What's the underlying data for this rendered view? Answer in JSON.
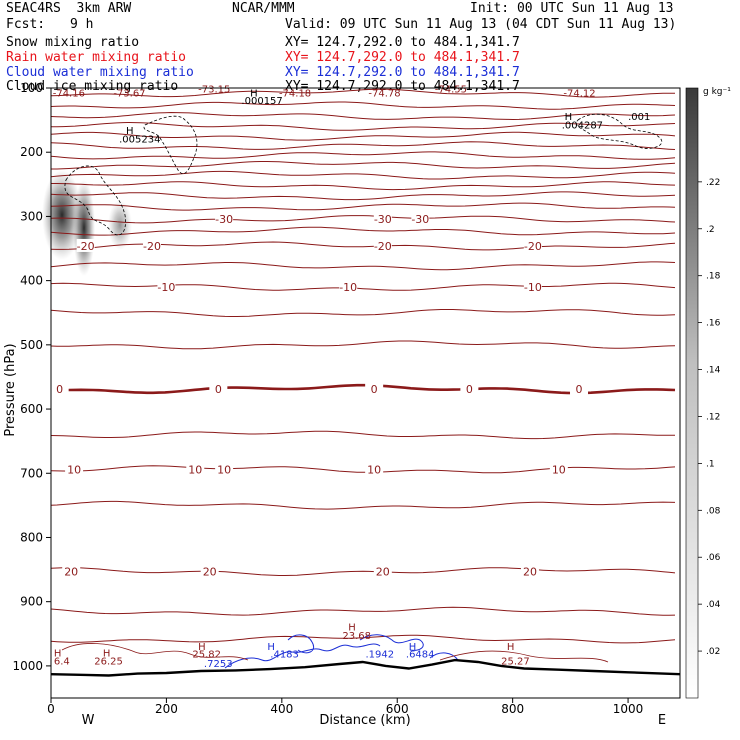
{
  "header": {
    "model": "SEAC4RS  3km ARW",
    "fcst_label": "Fcst:",
    "fcst_value": "9 h",
    "center": "NCAR/MMM",
    "init": "Init: 00 UTC Sun 11 Aug 13",
    "valid": "Valid: 09 UTC Sun 11 Aug 13 (04 CDT Sun 11 Aug 13)",
    "fields": [
      {
        "name": "Snow mixing ratio",
        "xy": "XY= 124.7,292.0 to 484.1,341.7",
        "color": "#000000"
      },
      {
        "name": "Rain water mixing ratio",
        "xy": "XY= 124.7,292.0 to 484.1,341.7",
        "color": "#e8141b"
      },
      {
        "name": "Cloud water mixing ratio",
        "xy": "XY= 124.7,292.0 to 484.1,341.7",
        "color": "#1c2fd6"
      },
      {
        "name": "Cloud ice mixing ratio",
        "xy": "XY= 124.7,292.0 to 484.1,341.7",
        "color": "#000000"
      }
    ]
  },
  "chart_data": {
    "type": "cross-section",
    "xlabel": "Distance (km)",
    "ylabel": "Pressure (hPa)",
    "xlim": [
      0,
      1090
    ],
    "ylim": [
      1050,
      100
    ],
    "x_ticks": [
      "0",
      "200",
      "400",
      "600",
      "800",
      "1000"
    ],
    "x_tick_values": [
      0,
      200,
      400,
      600,
      800,
      1000
    ],
    "y_ticks": [
      "100",
      "200",
      "300",
      "400",
      "500",
      "600",
      "700",
      "800",
      "900",
      "1000"
    ],
    "y_tick_values": [
      100,
      200,
      300,
      400,
      500,
      600,
      700,
      800,
      900,
      1000
    ],
    "direction_left": "W",
    "direction_right": "E",
    "colorbar": {
      "unit": "g kg⁻¹",
      "labels": [
        ".02",
        ".04",
        ".06",
        ".08",
        ".1",
        ".12",
        ".14",
        ".16",
        ".18",
        ".2",
        ".22"
      ],
      "values": [
        0.02,
        0.04,
        0.06,
        0.08,
        0.1,
        0.12,
        0.14,
        0.16,
        0.18,
        0.2,
        0.22
      ],
      "max": 0.26
    },
    "temperature_color": "#8b1a1a",
    "temperature_contours": [
      {
        "p": 108
      },
      {
        "p": 127
      },
      {
        "p": 144
      },
      {
        "p": 160
      },
      {
        "p": 175
      },
      {
        "p": 190
      },
      {
        "p": 205
      },
      {
        "p": 220
      },
      {
        "p": 236
      },
      {
        "p": 252
      },
      {
        "p": 268
      },
      {
        "p": 285
      },
      {
        "value": "-30",
        "p": 304,
        "labels_km": [
          300,
          575,
          640
        ]
      },
      {
        "p": 323
      },
      {
        "value": "-20",
        "p": 346,
        "labels_km": [
          60,
          175,
          575,
          835
        ]
      },
      {
        "p": 377
      },
      {
        "value": "-10",
        "p": 410,
        "labels_km": [
          200,
          515,
          835
        ]
      },
      {
        "p": 450
      },
      {
        "p": 500
      },
      {
        "value": "0",
        "p": 569,
        "labels_km": [
          15,
          290,
          560,
          725,
          915
        ]
      },
      {
        "p": 640
      },
      {
        "value": "10",
        "p": 694,
        "labels_km": [
          40,
          250,
          300,
          560,
          880
        ]
      },
      {
        "p": 750
      },
      {
        "value": "20",
        "p": 853,
        "labels_km": [
          35,
          275,
          575,
          830
        ]
      },
      {
        "p": 915
      },
      {
        "p": 958
      }
    ],
    "maxima_labels": [
      {
        "text": "-74.16",
        "x_km": 3,
        "p": 113
      },
      {
        "text": "-73.67",
        "x_km": 108,
        "p": 113
      },
      {
        "text": "-73.15",
        "x_km": 255,
        "p": 107
      },
      {
        "text": "-74.18",
        "x_km": 395,
        "p": 113
      },
      {
        "text": "-74.78",
        "x_km": 550,
        "p": 113
      },
      {
        "text": "-74.55",
        "x_km": 665,
        "p": 107
      },
      {
        "text": "-74.12",
        "x_km": 888,
        "p": 113
      },
      {
        "text": ".000157",
        "x_km": 330,
        "p": 125
      },
      {
        "text": ".005234",
        "x_km": 118,
        "p": 185
      },
      {
        "text": ".004287",
        "x_km": 885,
        "p": 163
      },
      {
        "text": ".001",
        "x_km": 1000,
        "p": 150
      },
      {
        "text": "6.4",
        "x_km": 5,
        "p": 998
      },
      {
        "text": "26.25",
        "x_km": 75,
        "p": 998
      },
      {
        "text": "25.82",
        "x_km": 245,
        "p": 987
      },
      {
        "text": ".7253",
        "x_km": 265,
        "p": 1002
      },
      {
        "text": ".4183",
        "x_km": 380,
        "p": 987
      },
      {
        "text": "23.68",
        "x_km": 505,
        "p": 958
      },
      {
        "text": ".1942",
        "x_km": 545,
        "p": 987
      },
      {
        "text": ".6484",
        "x_km": 615,
        "p": 987
      },
      {
        "text": "25.27",
        "x_km": 780,
        "p": 998
      }
    ],
    "H_markers": [
      {
        "x_km": 345,
        "p": 113
      },
      {
        "x_km": 130,
        "p": 172
      },
      {
        "x_km": 890,
        "p": 150
      },
      {
        "x_km": 5,
        "p": 985
      },
      {
        "x_km": 90,
        "p": 985
      },
      {
        "x_km": 255,
        "p": 975
      },
      {
        "x_km": 375,
        "p": 975
      },
      {
        "x_km": 515,
        "p": 945
      },
      {
        "x_km": 620,
        "p": 975
      },
      {
        "x_km": 790,
        "p": 975
      }
    ],
    "terrain_pressure": [
      [
        0,
        1013
      ],
      [
        60,
        1014
      ],
      [
        100,
        1015
      ],
      [
        150,
        1012
      ],
      [
        200,
        1011
      ],
      [
        260,
        1008
      ],
      [
        320,
        1007
      ],
      [
        380,
        1005
      ],
      [
        440,
        1002
      ],
      [
        500,
        997
      ],
      [
        540,
        994
      ],
      [
        580,
        1000
      ],
      [
        620,
        1004
      ],
      [
        660,
        998
      ],
      [
        700,
        991
      ],
      [
        740,
        994
      ],
      [
        780,
        1000
      ],
      [
        820,
        1004
      ],
      [
        880,
        1006
      ],
      [
        940,
        1008
      ],
      [
        1000,
        1010
      ],
      [
        1060,
        1012
      ],
      [
        1090,
        1013
      ]
    ]
  }
}
